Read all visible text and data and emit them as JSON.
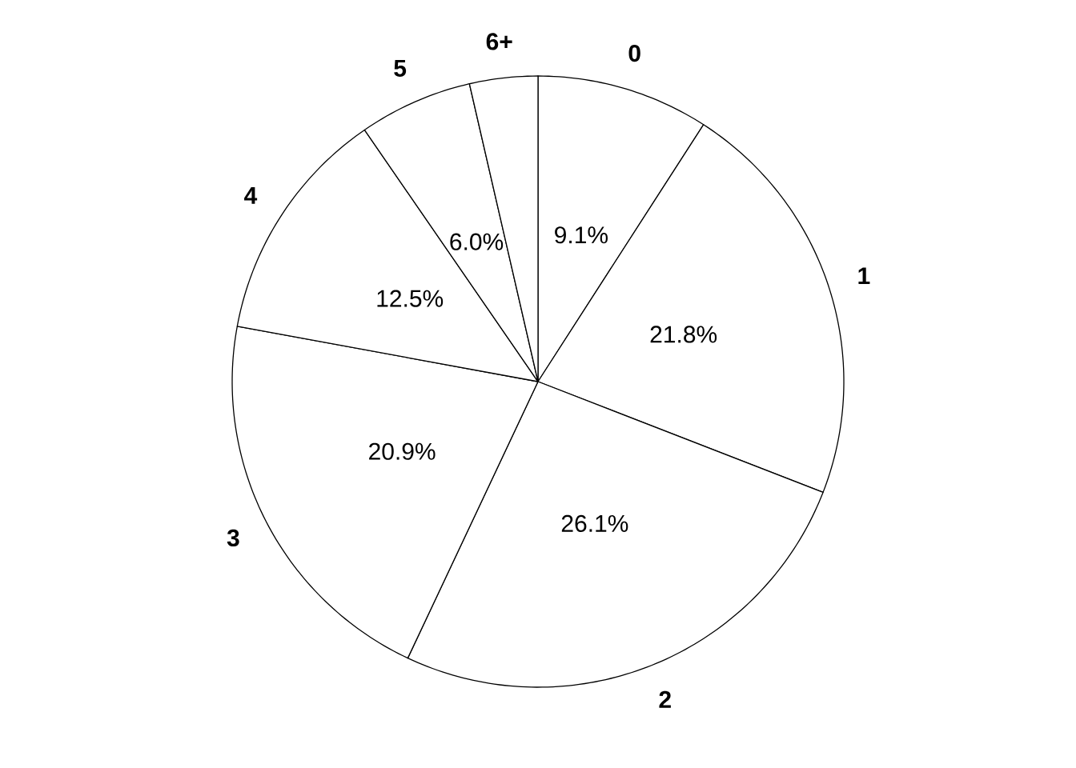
{
  "chart_data": {
    "type": "pie",
    "categories": [
      "0",
      "1",
      "2",
      "3",
      "4",
      "5",
      "6+"
    ],
    "values": [
      9.1,
      21.8,
      26.1,
      20.9,
      12.5,
      6.0,
      3.6
    ],
    "colors": [
      "#ffffff",
      "#ffffff",
      "#ffffff",
      "#ffffff",
      "#ffffff",
      "#ffffff",
      "#ffffff"
    ],
    "value_labels": [
      "9.1%",
      "21.8%",
      "26.1%",
      "20.9%",
      "12.5%",
      "6.0%",
      null
    ]
  }
}
